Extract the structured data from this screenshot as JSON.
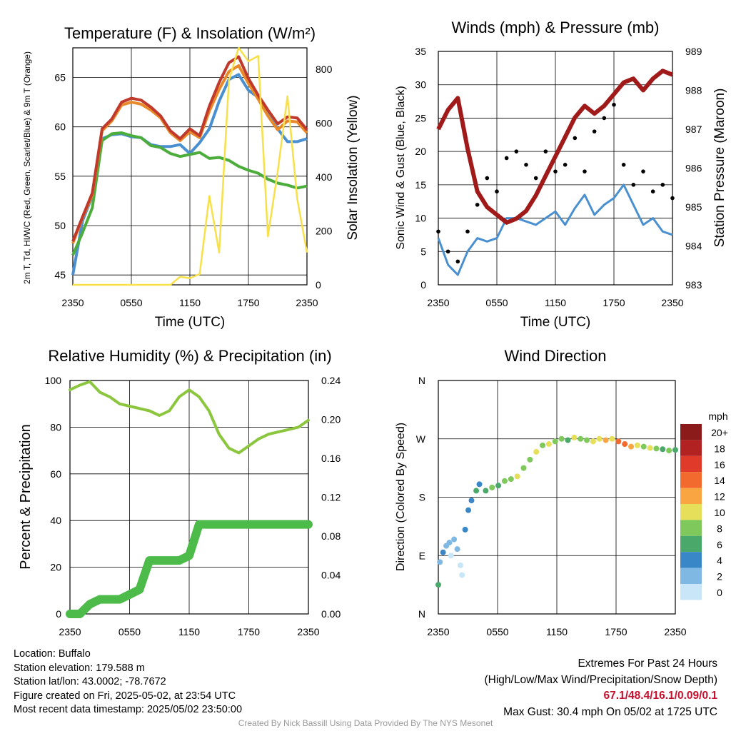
{
  "chart_data": [
    {
      "type": "line",
      "title": "Temperature (F) & Insolation (W/m²)",
      "xlabel": "Time (UTC)",
      "ylabel": "2m T, Td, HI/WC (Red, Green, Scarlet/Blue) & 9m T (Orange)",
      "ylabel_right": "Solar Insolation (Yellow)",
      "x_ticks": [
        "2350",
        "0550",
        "1150",
        "1750",
        "2350"
      ],
      "x": [
        0,
        1,
        2,
        3,
        4,
        5,
        6,
        7,
        8,
        9,
        10,
        11,
        12,
        13,
        14,
        15,
        16,
        17,
        18,
        19,
        20,
        21,
        22,
        23,
        24
      ],
      "ylim": [
        44,
        68
      ],
      "y_ticks": [
        45,
        50,
        55,
        60,
        65
      ],
      "y2lim": [
        0,
        880
      ],
      "y2_ticks": [
        0,
        200,
        400,
        600,
        800
      ],
      "grid": true,
      "series": [
        {
          "color": "#4a90d0",
          "values": [
            45,
            50.5,
            53,
            58.8,
            59.2,
            59.3,
            59.0,
            58.9,
            58.2,
            58.0,
            58.0,
            58.2,
            57.3,
            58.4,
            59.8,
            62.6,
            64.8,
            65.3,
            63.7,
            63.0,
            61.2,
            59.8,
            58.5,
            58.5,
            58.8
          ]
        },
        {
          "color": "#4dad3c",
          "values": [
            47.0,
            49.3,
            51.8,
            58.6,
            59.3,
            59.4,
            59.1,
            58.9,
            58.1,
            57.9,
            57.3,
            57.0,
            57.2,
            57.4,
            56.8,
            56.9,
            56.6,
            56.0,
            55.6,
            55.3,
            54.7,
            54.3,
            54.1,
            53.8,
            54.0
          ]
        },
        {
          "color": "#e88a2a",
          "values": [
            48.2,
            50.8,
            53.1,
            59.6,
            60.6,
            62.2,
            62.5,
            62.3,
            61.7,
            60.9,
            59.4,
            58.6,
            59.5,
            58.9,
            61.6,
            63.8,
            65.6,
            66.2,
            64.4,
            62.8,
            61.1,
            59.7,
            60.6,
            60.5,
            59.4
          ]
        },
        {
          "color": "#c0392b",
          "values": [
            48.4,
            50.9,
            53.3,
            59.8,
            60.8,
            62.5,
            62.9,
            62.7,
            62.0,
            61.1,
            59.6,
            58.8,
            59.8,
            59.1,
            62.1,
            64.5,
            66.5,
            67.1,
            64.9,
            63.2,
            61.7,
            60.3,
            61.0,
            60.9,
            59.7
          ]
        },
        {
          "color": "#f7e04a",
          "axis": "right",
          "values": [
            0,
            0,
            0,
            0,
            0,
            0,
            0,
            0,
            0,
            0,
            0,
            30,
            25,
            40,
            330,
            120,
            760,
            880,
            830,
            850,
            180,
            420,
            700,
            320,
            120
          ]
        }
      ]
    },
    {
      "type": "line",
      "title": "Winds (mph) & Pressure (mb)",
      "xlabel": "Time (UTC)",
      "ylabel": "Sonic Wind & Gust (Blue, Black)",
      "ylabel_right": "Station Pressure (Maroon)",
      "x_ticks": [
        "2350",
        "0550",
        "1150",
        "1750",
        "2350"
      ],
      "x": [
        0,
        1,
        2,
        3,
        4,
        5,
        6,
        7,
        8,
        9,
        10,
        11,
        12,
        13,
        14,
        15,
        16,
        17,
        18,
        19,
        20,
        21,
        22,
        23,
        24
      ],
      "ylim": [
        0,
        35
      ],
      "y_ticks": [
        0,
        5,
        10,
        15,
        20,
        25,
        30,
        35
      ],
      "y2lim": [
        983,
        989
      ],
      "y2_ticks": [
        983,
        984,
        985,
        986,
        987,
        988,
        989
      ],
      "grid": true,
      "series": [
        {
          "color": "#4a90d0",
          "values": [
            7,
            3,
            1.5,
            5,
            7,
            6.5,
            7,
            10,
            10,
            9.5,
            9,
            10,
            11,
            9,
            11.5,
            13.5,
            10.5,
            12,
            13,
            15,
            12,
            9,
            10,
            8,
            7.5
          ]
        },
        {
          "color": "#000000",
          "style": "dots",
          "values": [
            8,
            5,
            3.5,
            8,
            12,
            16,
            14,
            19,
            20,
            18,
            16,
            20,
            17,
            18,
            22,
            17,
            23,
            25,
            27,
            18,
            15,
            17,
            14,
            15,
            13
          ]
        },
        {
          "color": "#a01a1a",
          "axis": "right",
          "values": [
            987.0,
            987.5,
            987.8,
            986.5,
            985.4,
            985.0,
            984.8,
            984.6,
            984.7,
            984.9,
            985.3,
            985.8,
            986.3,
            986.8,
            987.3,
            987.6,
            987.4,
            987.6,
            987.9,
            988.2,
            988.3,
            988.0,
            988.3,
            988.5,
            988.4
          ]
        }
      ]
    },
    {
      "type": "line",
      "title": "Relative Humidity (%) & Precipitation (in)",
      "ylabel": "Percent & Precipitation",
      "x_ticks": [
        "2350",
        "0550",
        "1150",
        "1750",
        "2350"
      ],
      "x": [
        0,
        1,
        2,
        3,
        4,
        5,
        6,
        7,
        8,
        9,
        10,
        11,
        12,
        13,
        14,
        15,
        16,
        17,
        18,
        19,
        20,
        21,
        22,
        23,
        24
      ],
      "ylim": [
        0,
        100
      ],
      "y_ticks": [
        0,
        20,
        40,
        60,
        80,
        100
      ],
      "y2lim": [
        0,
        0.24
      ],
      "y2_ticks": [
        "0.00",
        "0.04",
        "0.08",
        "0.12",
        "0.16",
        "0.20",
        "0.24"
      ],
      "grid": true,
      "series": [
        {
          "color": "#8cc63f",
          "values": [
            96,
            98,
            99.5,
            95,
            93,
            90,
            89,
            88,
            87,
            85,
            87,
            93,
            96,
            93,
            87,
            77,
            71,
            69,
            72,
            75,
            77,
            78,
            79,
            80,
            83
          ]
        },
        {
          "color": "#4dbb4a",
          "style": "thick",
          "values": [
            0,
            0,
            0.01,
            0.015,
            0.015,
            0.015,
            0.02,
            0.025,
            0.055,
            0.055,
            0.055,
            0.055,
            0.06,
            0.092,
            0.092,
            0.092,
            0.092,
            0.092,
            0.092,
            0.092,
            0.092,
            0.092,
            0.092,
            0.092,
            0.092
          ]
        }
      ]
    },
    {
      "type": "scatter",
      "title": "Wind Direction",
      "ylabel": "Direction (Colored By Speed)",
      "x_ticks": [
        "2350",
        "0550",
        "1150",
        "1750",
        "2350"
      ],
      "y_ticks": [
        "N",
        "E",
        "S",
        "W",
        "N"
      ],
      "ylim": [
        0,
        360
      ],
      "grid": true,
      "legend_title": "mph",
      "legend_position": "right",
      "legend": [
        {
          "label": "20+",
          "color": "#8b1a1a"
        },
        {
          "label": "18",
          "color": "#b22222"
        },
        {
          "label": "16",
          "color": "#e03a2a"
        },
        {
          "label": "14",
          "color": "#f26a2e"
        },
        {
          "label": "12",
          "color": "#f9a542"
        },
        {
          "label": "10",
          "color": "#e6df5a"
        },
        {
          "label": "8",
          "color": "#7ec85c"
        },
        {
          "label": "6",
          "color": "#4aa86a"
        },
        {
          "label": "4",
          "color": "#3a87c7"
        },
        {
          "label": "2",
          "color": "#7fb8e2"
        },
        {
          "label": "0",
          "color": "#c8e6f7"
        }
      ],
      "points": [
        {
          "x": 0.0,
          "dir": 45,
          "spd": 6
        },
        {
          "x": 0.1,
          "dir": 80,
          "spd": 3
        },
        {
          "x": 0.3,
          "dir": 95,
          "spd": 4
        },
        {
          "x": 0.5,
          "dir": 105,
          "spd": 2
        },
        {
          "x": 0.7,
          "dir": 110,
          "spd": 3
        },
        {
          "x": 0.8,
          "dir": 90,
          "spd": 1
        },
        {
          "x": 1.0,
          "dir": 115,
          "spd": 2
        },
        {
          "x": 1.2,
          "dir": 100,
          "spd": 3
        },
        {
          "x": 1.4,
          "dir": 75,
          "spd": 1
        },
        {
          "x": 1.5,
          "dir": 60,
          "spd": 0
        },
        {
          "x": 1.7,
          "dir": 130,
          "spd": 5
        },
        {
          "x": 1.9,
          "dir": 160,
          "spd": 4
        },
        {
          "x": 2.1,
          "dir": 175,
          "spd": 4
        },
        {
          "x": 2.4,
          "dir": 190,
          "spd": 6
        },
        {
          "x": 2.6,
          "dir": 200,
          "spd": 5
        },
        {
          "x": 3.0,
          "dir": 190,
          "spd": 7
        },
        {
          "x": 3.4,
          "dir": 195,
          "spd": 8
        },
        {
          "x": 3.8,
          "dir": 198,
          "spd": 6
        },
        {
          "x": 4.2,
          "dir": 205,
          "spd": 9
        },
        {
          "x": 4.6,
          "dir": 208,
          "spd": 8
        },
        {
          "x": 5.0,
          "dir": 212,
          "spd": 10
        },
        {
          "x": 5.4,
          "dir": 225,
          "spd": 9
        },
        {
          "x": 5.8,
          "dir": 238,
          "spd": 8
        },
        {
          "x": 6.2,
          "dir": 250,
          "spd": 10
        },
        {
          "x": 6.6,
          "dir": 260,
          "spd": 9
        },
        {
          "x": 7.0,
          "dir": 262,
          "spd": 10
        },
        {
          "x": 7.4,
          "dir": 266,
          "spd": 8
        },
        {
          "x": 7.8,
          "dir": 270,
          "spd": 9
        },
        {
          "x": 8.2,
          "dir": 268,
          "spd": 7
        },
        {
          "x": 8.6,
          "dir": 272,
          "spd": 10
        },
        {
          "x": 9.0,
          "dir": 270,
          "spd": 8
        },
        {
          "x": 9.4,
          "dir": 268,
          "spd": 9
        },
        {
          "x": 9.8,
          "dir": 266,
          "spd": 10
        },
        {
          "x": 10.2,
          "dir": 270,
          "spd": 11
        },
        {
          "x": 10.6,
          "dir": 268,
          "spd": 12
        },
        {
          "x": 11.0,
          "dir": 270,
          "spd": 11
        },
        {
          "x": 11.4,
          "dir": 266,
          "spd": 14
        },
        {
          "x": 11.8,
          "dir": 262,
          "spd": 15
        },
        {
          "x": 12.2,
          "dir": 258,
          "spd": 12
        },
        {
          "x": 12.6,
          "dir": 260,
          "spd": 10
        },
        {
          "x": 13.0,
          "dir": 258,
          "spd": 9
        },
        {
          "x": 13.4,
          "dir": 256,
          "spd": 10
        },
        {
          "x": 13.8,
          "dir": 255,
          "spd": 8
        },
        {
          "x": 14.2,
          "dir": 254,
          "spd": 7
        },
        {
          "x": 14.6,
          "dir": 252,
          "spd": 8
        },
        {
          "x": 15.0,
          "dir": 253,
          "spd": 6
        }
      ]
    }
  ],
  "footer": {
    "location": "Location: Buffalo",
    "elevation": "Station elevation: 179.588 m",
    "latlon": "Station lat/lon: 43.0002; -78.7672",
    "created": "Figure created on Fri, 2025-05-02, at 23:54 UTC",
    "recent": "Most recent data timestamp: 2025/05/02 23:50:00",
    "extremes_title": "Extremes For Past 24 Hours",
    "extremes_legend": "(High/Low/Max Wind/Precipitation/Snow Depth)",
    "extremes_values": "67.1/48.4/16.1/0.09/0.1",
    "max_gust": "Max Gust: 30.4 mph On 05/02 at 1725 UTC",
    "credit": "Created By Nick Bassill Using Data Provided By The NYS Mesonet"
  }
}
